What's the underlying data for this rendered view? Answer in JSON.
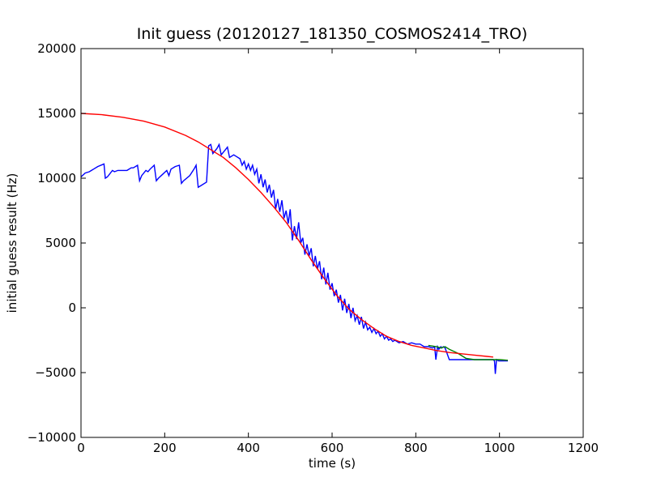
{
  "chart_data": {
    "type": "line",
    "title": "Init guess (20120127_181350_COSMOS2414_TRO)",
    "xlabel": "time (s)",
    "ylabel": "initial guess result (Hz)",
    "xlim": [
      0,
      1200
    ],
    "ylim": [
      -10000,
      20000
    ],
    "x_ticks": [
      0,
      200,
      400,
      600,
      800,
      1000,
      1200
    ],
    "x_tick_labels": [
      "0",
      "200",
      "400",
      "600",
      "800",
      "1000",
      "1200"
    ],
    "y_ticks": [
      -10000,
      -5000,
      0,
      5000,
      10000,
      15000,
      20000
    ],
    "y_tick_labels": [
      "−10000",
      "−5000",
      "0",
      "5000",
      "10000",
      "15000",
      "20000"
    ],
    "grid": false,
    "legend": "none",
    "series": [
      {
        "color": "#0000ff",
        "x": [
          0,
          10,
          20,
          25,
          30,
          40,
          55,
          58,
          63,
          75,
          80,
          88,
          100,
          110,
          120,
          125,
          135,
          140,
          145,
          155,
          160,
          165,
          175,
          180,
          185,
          195,
          205,
          210,
          215,
          225,
          235,
          240,
          245,
          260,
          270,
          275,
          280,
          285,
          300,
          305,
          310,
          315,
          325,
          330,
          335,
          345,
          350,
          355,
          365,
          370,
          380,
          385,
          390,
          395,
          400,
          405,
          410,
          415,
          420,
          425,
          430,
          435,
          440,
          445,
          450,
          455,
          460,
          465,
          470,
          475,
          480,
          485,
          490,
          495,
          500,
          505,
          510,
          515,
          520,
          525,
          530,
          535,
          540,
          545,
          550,
          555,
          560,
          565,
          570,
          575,
          580,
          585,
          590,
          595,
          600,
          605,
          610,
          615,
          620,
          625,
          630,
          635,
          640,
          645,
          650,
          655,
          660,
          665,
          670,
          675,
          680,
          685,
          690,
          695,
          700,
          705,
          710,
          715,
          720,
          725,
          730,
          735,
          740,
          745,
          750,
          760,
          770,
          780,
          790,
          800,
          810,
          820,
          830,
          840,
          845,
          848,
          852,
          855,
          860,
          862,
          866,
          870,
          880,
          900,
          920,
          940,
          960,
          980,
          985,
          988,
          990,
          993,
          998,
          1010,
          1020
        ],
        "y": [
          10100,
          10400,
          10500,
          10600,
          10700,
          10900,
          11100,
          10000,
          10100,
          10600,
          10500,
          10600,
          10600,
          10600,
          10800,
          10800,
          11000,
          9800,
          10200,
          10600,
          10500,
          10700,
          11000,
          9800,
          10000,
          10300,
          10600,
          10200,
          10700,
          10900,
          11000,
          9600,
          9800,
          10200,
          10700,
          11000,
          9300,
          9400,
          9700,
          12500,
          12600,
          11900,
          12300,
          12600,
          11800,
          12200,
          12400,
          11600,
          11800,
          11700,
          11500,
          11000,
          11300,
          10700,
          11100,
          10600,
          11000,
          10300,
          10700,
          9600,
          10300,
          9300,
          9900,
          8900,
          9500,
          8500,
          9100,
          7600,
          8400,
          7400,
          8300,
          6900,
          7500,
          6500,
          7600,
          5200,
          6300,
          5300,
          6600,
          5000,
          5400,
          4100,
          4900,
          4000,
          4600,
          3200,
          4000,
          3000,
          3600,
          2200,
          3100,
          1800,
          2700,
          1400,
          1900,
          900,
          1400,
          400,
          1000,
          -200,
          700,
          -400,
          300,
          -800,
          0,
          -1000,
          -600,
          -1300,
          -700,
          -1600,
          -1100,
          -1700,
          -1500,
          -1900,
          -1600,
          -2000,
          -1800,
          -2200,
          -2000,
          -2400,
          -2200,
          -2500,
          -2400,
          -2600,
          -2500,
          -2700,
          -2600,
          -2800,
          -2700,
          -2800,
          -2800,
          -3000,
          -3000,
          -3100,
          -3000,
          -4000,
          -3000,
          -3200,
          -3000,
          -3100,
          -3000,
          -3100,
          -4000,
          -4000,
          -4000,
          -4000,
          -4000,
          -4000,
          -4000,
          -4100,
          -5100,
          -4000,
          -4100,
          -4100,
          -4100
        ]
      },
      {
        "color": "#008000",
        "x": [
          830,
          850,
          860,
          870,
          880,
          900,
          920,
          940,
          960,
          980,
          1000,
          1020
        ],
        "y": [
          -2900,
          -3000,
          -3100,
          -3000,
          -3200,
          -3500,
          -3900,
          -4000,
          -4000,
          -4000,
          -4000,
          -4050
        ]
      },
      {
        "color": "#ff0000",
        "x": [
          0,
          50,
          100,
          150,
          200,
          250,
          280,
          310,
          340,
          370,
          400,
          430,
          460,
          490,
          520,
          550,
          580,
          610,
          640,
          670,
          700,
          730,
          760,
          790,
          820,
          850,
          880,
          910,
          940,
          970,
          985
        ],
        "y": [
          15000,
          14900,
          14700,
          14400,
          13950,
          13300,
          12800,
          12200,
          11600,
          10800,
          9900,
          8900,
          7800,
          6600,
          5200,
          3700,
          2300,
          1000,
          -100,
          -900,
          -1600,
          -2200,
          -2600,
          -2900,
          -3100,
          -3300,
          -3450,
          -3550,
          -3650,
          -3750,
          -3800
        ]
      }
    ]
  }
}
